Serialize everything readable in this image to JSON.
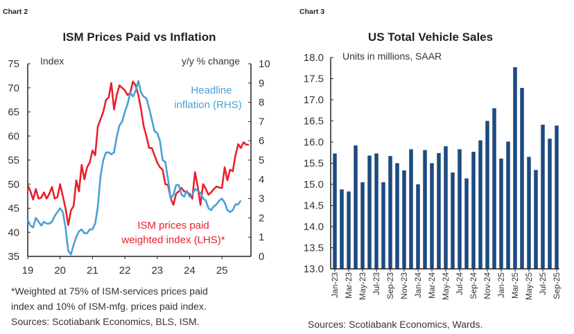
{
  "charts_labels": {
    "left": "Chart 2",
    "right": "Chart 3"
  },
  "chart_data": [
    {
      "type": "line",
      "title": "ISM Prices Paid vs Inflation",
      "ylabel_left": "Index",
      "ylabel_right": "y/y % change",
      "ylim_left": [
        35,
        75
      ],
      "ylim_right": [
        0,
        10
      ],
      "yticks_left": [
        "75",
        "70",
        "65",
        "60",
        "55",
        "50",
        "45",
        "40",
        "35"
      ],
      "yticks_right": [
        "10",
        "9",
        "8",
        "7",
        "6",
        "5",
        "4",
        "3",
        "2",
        "1",
        "0"
      ],
      "xticks": [
        "19",
        "20",
        "21",
        "22",
        "23",
        "24",
        "25"
      ],
      "x_start": "2019-01",
      "frequency": "monthly",
      "grid": false,
      "series": [
        {
          "name": "ISM prices paid weighted index (LHS)*",
          "label_lines": [
            "ISM prices paid",
            "weighted index (LHS)*"
          ],
          "axis": "left",
          "color": "#e8202c",
          "values": [
            49.8,
            48.5,
            46.8,
            49,
            47,
            47.2,
            48.3,
            47,
            48,
            49.4,
            47,
            47.3,
            50,
            47.5,
            45,
            41.5,
            44.5,
            45.5,
            50.8,
            48.5,
            54,
            51,
            53.5,
            54.5,
            57,
            56,
            62,
            63.5,
            65,
            67.5,
            68,
            71,
            65.5,
            68.5,
            70.5,
            70,
            69.5,
            68.5,
            69,
            71.3,
            70.5,
            68.5,
            65.5,
            62,
            60,
            57.5,
            57.5,
            56,
            54.5,
            53.5,
            53,
            50,
            49.8,
            47,
            45.7,
            48,
            48.5,
            49.2,
            48.5,
            48.3,
            48,
            47,
            52.5,
            49.5,
            45.7,
            50,
            49,
            47.8,
            48.3,
            49,
            49.5,
            49.3,
            49.2,
            53.5,
            50.8,
            53,
            52.7,
            56,
            58.3,
            57.5,
            58.7,
            58.2,
            58.2
          ]
        },
        {
          "name": "Headline inflation (RHS)",
          "label_lines": [
            "Headline",
            "inflation (RHS)"
          ],
          "axis": "right",
          "color": "#4a9fd5",
          "values": [
            1.9,
            1.6,
            1.5,
            2.0,
            1.8,
            1.6,
            1.8,
            1.7,
            1.7,
            1.8,
            2.1,
            2.3,
            2.5,
            2.3,
            1.5,
            0.3,
            0.1,
            0.6,
            1.0,
            1.3,
            1.4,
            1.2,
            1.2,
            1.4,
            1.4,
            1.7,
            2.6,
            4.2,
            5.0,
            5.4,
            5.4,
            5.3,
            5.4,
            6.2,
            6.8,
            7.0,
            7.5,
            7.9,
            8.5,
            8.3,
            8.6,
            9.1,
            8.5,
            8.3,
            8.2,
            7.7,
            7.1,
            6.5,
            6.4,
            6.0,
            5.0,
            4.9,
            4.0,
            3.0,
            3.2,
            3.7,
            3.7,
            3.2,
            3.1,
            3.4,
            3.1,
            3.2,
            3.5,
            3.4,
            3.3,
            3.0,
            2.9,
            2.5,
            2.4,
            2.6,
            2.7,
            2.9,
            3.0,
            2.8,
            2.4,
            2.3,
            2.4,
            2.7,
            2.7,
            2.9
          ]
        }
      ],
      "footnote": [
        "*Weighted at 75% of ISM-services prices paid",
        "index and 10% of ISM-mfg. prices paid index.",
        "Sources: Scotiabank Economics, BLS, ISM."
      ]
    },
    {
      "type": "bar",
      "title": "US Total Vehicle Sales",
      "ylabel": "Units in millions, SAAR",
      "ylim": [
        13.0,
        18.0
      ],
      "yticks": [
        "18.0",
        "17.5",
        "17.0",
        "16.5",
        "16.0",
        "15.5",
        "15.0",
        "14.5",
        "14.0",
        "13.5",
        "13.0"
      ],
      "grid": false,
      "color": "#1d4a80",
      "categories": [
        "Jan-23",
        "Feb-23",
        "Mar-23",
        "Apr-23",
        "May-23",
        "Jun-23",
        "Jul-23",
        "Aug-23",
        "Sep-23",
        "Oct-23",
        "Nov-23",
        "Dec-23",
        "Jan-24",
        "Feb-24",
        "Mar-24",
        "Apr-24",
        "May-24",
        "Jun-24",
        "Jul-24",
        "Aug-24",
        "Sep-24",
        "Oct-24",
        "Nov-24",
        "Dec-24",
        "Jan-25",
        "Feb-25",
        "Mar-25",
        "Apr-25",
        "May-25",
        "Jun-25",
        "Jul-25",
        "Aug-25",
        "Sep-25"
      ],
      "xtick_labels": [
        "Jan-23",
        "Mar-23",
        "May-23",
        "Jul-23",
        "Sep-23",
        "Nov-23",
        "Jan-24",
        "Mar-24",
        "May-24",
        "Jul-24",
        "Sep-24",
        "Nov-24",
        "Jan-25",
        "Mar-25",
        "May-25",
        "Jul-25",
        "Sep-25"
      ],
      "values": [
        15.73,
        14.88,
        14.83,
        15.92,
        15.05,
        15.68,
        15.73,
        15.05,
        15.67,
        15.5,
        15.33,
        15.83,
        15.0,
        15.81,
        15.5,
        15.74,
        15.9,
        15.28,
        15.83,
        15.14,
        15.77,
        16.04,
        16.5,
        16.8,
        15.61,
        16.01,
        17.77,
        17.28,
        15.65,
        15.34,
        16.41,
        16.08,
        16.39
      ],
      "source": "Sources: Scotiabank Economics, Wards."
    }
  ]
}
